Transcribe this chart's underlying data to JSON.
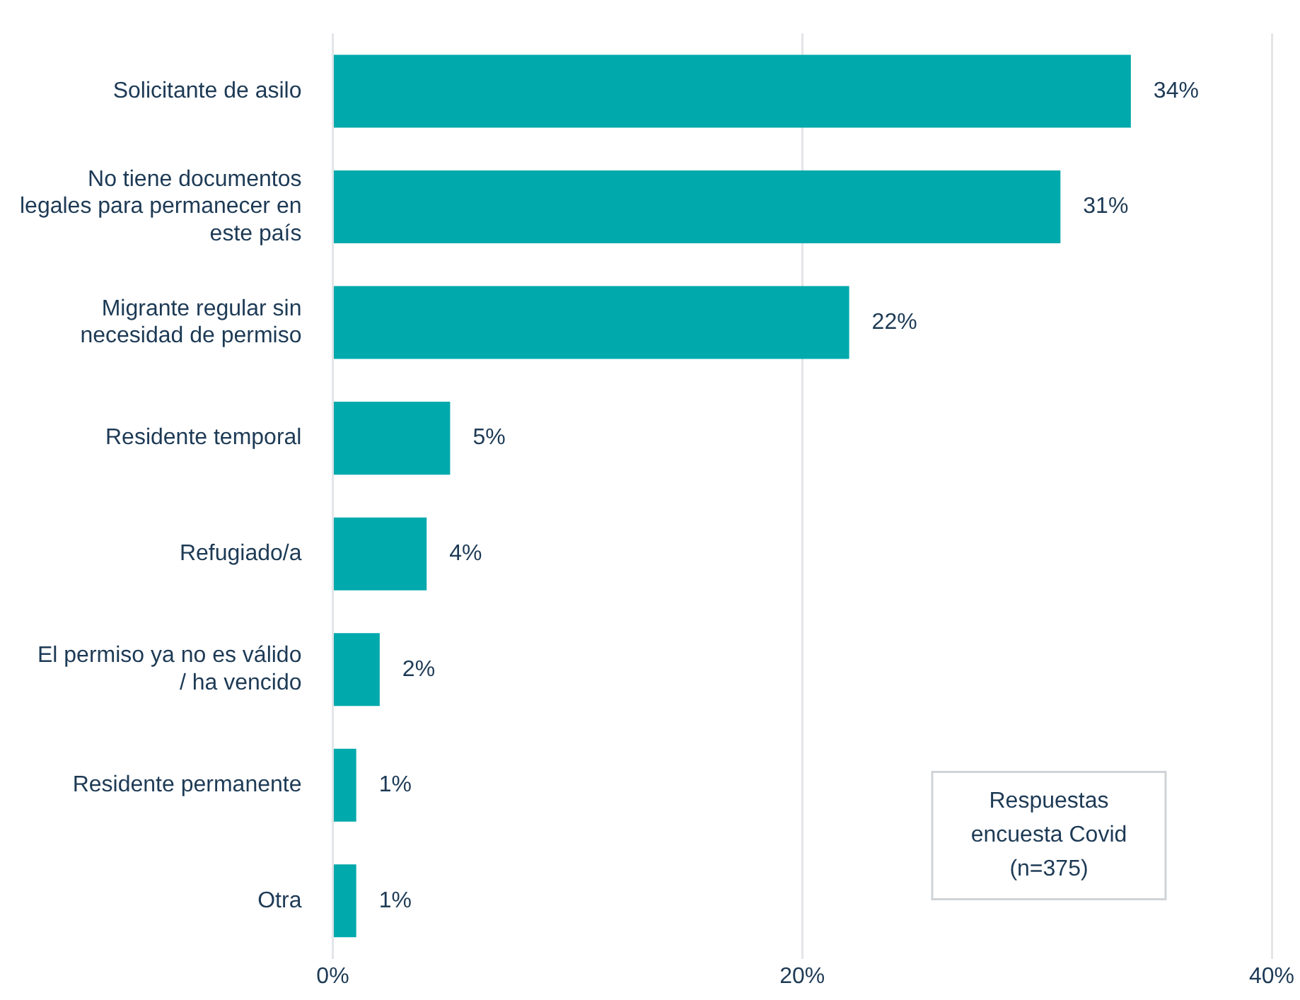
{
  "chart_data": {
    "type": "bar",
    "orientation": "horizontal",
    "categories": [
      "Solicitante de asilo",
      "No tiene documentos legales para permanecer en este país",
      "Migrante regular sin necesidad de permiso",
      "Residente temporal",
      "Refugiado/a",
      "El permiso ya no es válido / ha vencido",
      "Residente permanente",
      "Otra"
    ],
    "values": [
      34,
      31,
      22,
      5,
      4,
      2,
      1,
      1
    ],
    "value_labels": [
      "34%",
      "31%",
      "22%",
      "5%",
      "4%",
      "2%",
      "1%",
      "1%"
    ],
    "color": "#00a9ac",
    "xlim": [
      0,
      40
    ],
    "xticks": [
      {
        "value": 0,
        "label": "0%"
      },
      {
        "value": 20,
        "label": "20%"
      },
      {
        "value": 40,
        "label": "40%"
      }
    ],
    "grid": "x",
    "legend": false,
    "annotations": [
      "Respuestas encuesta Covid (n=375)"
    ]
  }
}
